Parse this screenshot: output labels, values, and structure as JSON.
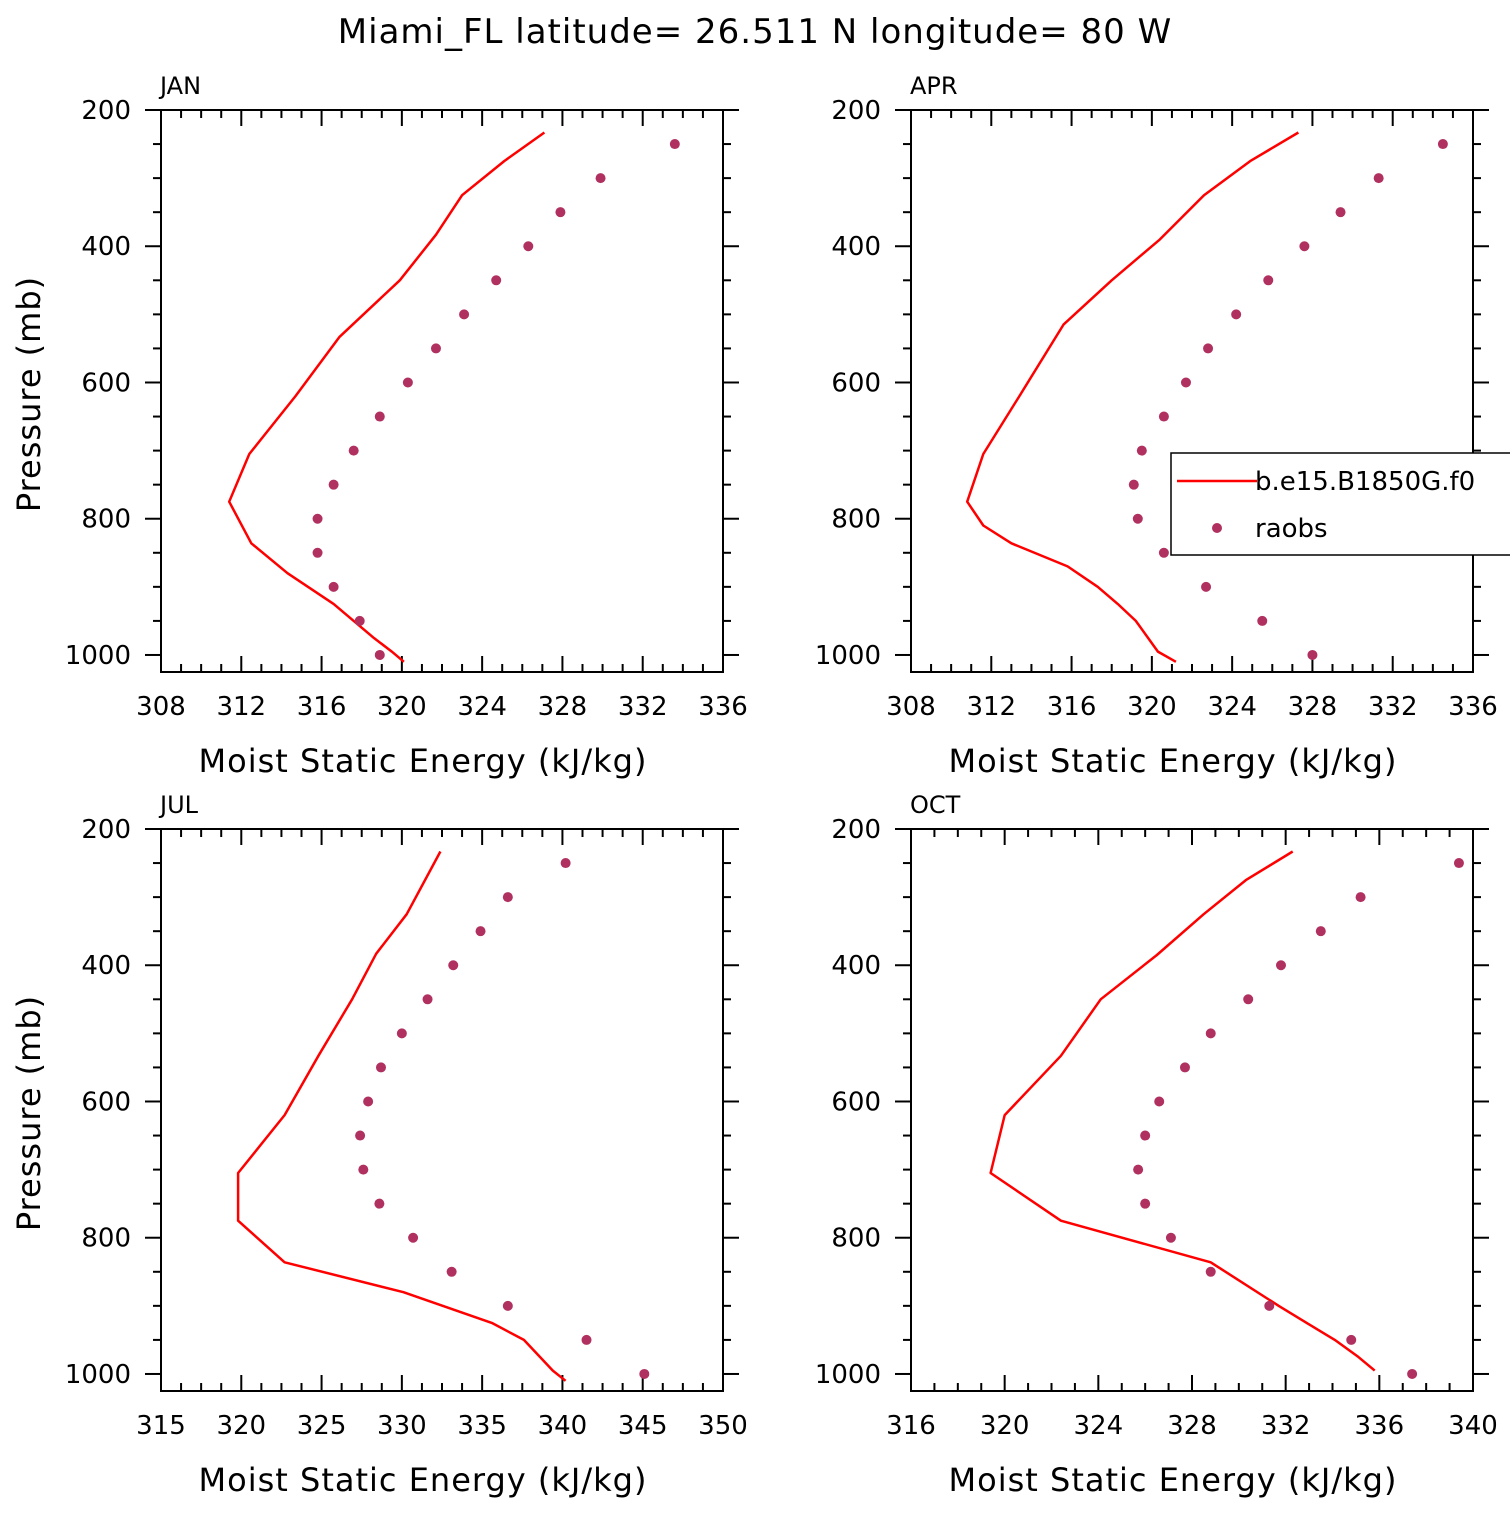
{
  "figure": {
    "title": "Miami_FL  latitude= 26.511 N longitude= 80 W"
  },
  "colors": {
    "model_line": "#ff0000",
    "obs_marker": "#b03060",
    "axis": "#000000"
  },
  "legend": {
    "placement": "right side of APR panel",
    "entries": [
      {
        "label": "b.e15.B1850G.f0",
        "style": "line"
      },
      {
        "label": "raobs",
        "style": "marker"
      }
    ]
  },
  "chart_data": [
    {
      "type": "line",
      "panel_label": "JAN",
      "xlabel": "Moist Static Energy (kJ/kg)",
      "ylabel": "Pressure (mb)",
      "xlim": [
        308,
        336
      ],
      "xticks": [
        308,
        312,
        316,
        320,
        324,
        328,
        332,
        336
      ],
      "ylim": [
        1000,
        200
      ],
      "ylim_plot": [
        1025,
        200
      ],
      "yticks": [
        200,
        400,
        600,
        800,
        1000
      ],
      "series": [
        {
          "kind": "line",
          "x": [
            327.1,
            325.1,
            323.0,
            321.7,
            319.9,
            316.9,
            314.7,
            312.4,
            311.4,
            312.5,
            314.3,
            316.6,
            317.6,
            318.6,
            319.5,
            320.1
          ],
          "y": [
            233,
            275,
            325,
            383,
            450,
            533,
            620,
            705,
            775,
            836,
            880,
            925,
            950,
            975,
            995,
            1010
          ]
        },
        {
          "kind": "scatter",
          "x": [
            333.6,
            329.9,
            327.9,
            326.3,
            324.7,
            323.1,
            321.7,
            320.3,
            318.9,
            317.6,
            316.6,
            315.8,
            315.8,
            316.6,
            317.9,
            318.9
          ],
          "y": [
            250,
            300,
            350,
            400,
            450,
            500,
            550,
            600,
            650,
            700,
            750,
            800,
            850,
            900,
            950,
            1000
          ]
        }
      ]
    },
    {
      "type": "line",
      "panel_label": "APR",
      "xlabel": "Moist Static Energy (kJ/kg)",
      "ylabel": "",
      "xlim": [
        308,
        336
      ],
      "xticks": [
        308,
        312,
        316,
        320,
        324,
        328,
        332,
        336
      ],
      "ylim": [
        1000,
        200
      ],
      "ylim_plot": [
        1025,
        200
      ],
      "yticks": [
        200,
        400,
        600,
        800,
        1000
      ],
      "series": [
        {
          "kind": "line",
          "x": [
            327.3,
            324.9,
            322.6,
            320.4,
            318.0,
            315.6,
            313.4,
            311.6,
            310.8,
            311.6,
            313.0,
            315.8,
            317.3,
            318.3,
            319.2,
            320.3,
            321.2
          ],
          "y": [
            233,
            275,
            325,
            390,
            450,
            515,
            620,
            705,
            775,
            810,
            836,
            870,
            900,
            925,
            950,
            995,
            1010
          ]
        },
        {
          "kind": "scatter",
          "x": [
            334.5,
            331.3,
            329.4,
            327.6,
            325.8,
            324.2,
            322.8,
            321.7,
            320.6,
            319.5,
            319.1,
            319.3,
            320.6,
            322.7,
            325.5,
            328.0
          ],
          "y": [
            250,
            300,
            350,
            400,
            450,
            500,
            550,
            600,
            650,
            700,
            750,
            800,
            850,
            900,
            950,
            1000
          ]
        }
      ]
    },
    {
      "type": "line",
      "panel_label": "JUL",
      "xlabel": "Moist Static Energy (kJ/kg)",
      "ylabel": "Pressure (mb)",
      "xlim": [
        315,
        350
      ],
      "xticks": [
        315,
        320,
        325,
        330,
        335,
        340,
        345,
        350
      ],
      "ylim": [
        1000,
        200
      ],
      "ylim_plot": [
        1025,
        200
      ],
      "yticks": [
        200,
        400,
        600,
        800,
        1000
      ],
      "series": [
        {
          "kind": "line",
          "x": [
            332.4,
            330.3,
            328.4,
            326.9,
            324.8,
            322.7,
            319.8,
            319.8,
            322.7,
            330.1,
            335.6,
            337.6,
            338.6,
            339.4,
            340.2
          ],
          "y": [
            233,
            325,
            383,
            450,
            533,
            620,
            705,
            775,
            836,
            880,
            925,
            950,
            975,
            995,
            1010
          ]
        },
        {
          "kind": "scatter",
          "x": [
            340.2,
            336.6,
            334.9,
            333.2,
            331.6,
            330.0,
            328.7,
            327.9,
            327.4,
            327.6,
            328.6,
            330.7,
            333.1,
            336.6,
            341.5,
            345.1
          ],
          "y": [
            250,
            300,
            350,
            400,
            450,
            500,
            550,
            600,
            650,
            700,
            750,
            800,
            850,
            900,
            950,
            1000
          ]
        }
      ]
    },
    {
      "type": "line",
      "panel_label": "OCT",
      "xlabel": "Moist Static Energy (kJ/kg)",
      "ylabel": "",
      "xlim": [
        316,
        340
      ],
      "xticks": [
        316,
        320,
        324,
        328,
        332,
        336,
        340
      ],
      "ylim": [
        1000,
        200
      ],
      "ylim_plot": [
        1025,
        200
      ],
      "yticks": [
        200,
        400,
        600,
        800,
        1000
      ],
      "series": [
        {
          "kind": "line",
          "x": [
            332.3,
            330.3,
            328.5,
            326.5,
            324.1,
            322.4,
            320.0,
            319.4,
            322.4,
            328.8,
            331.7,
            332.9,
            334.1,
            335.1,
            335.8
          ],
          "y": [
            233,
            275,
            325,
            385,
            450,
            533,
            620,
            705,
            775,
            836,
            900,
            925,
            950,
            975,
            995
          ]
        },
        {
          "kind": "scatter",
          "x": [
            339.4,
            335.2,
            333.5,
            331.8,
            330.4,
            328.8,
            327.7,
            326.6,
            326.0,
            325.7,
            326.0,
            327.1,
            328.8,
            331.3,
            334.8,
            337.4
          ],
          "y": [
            250,
            300,
            350,
            400,
            450,
            500,
            550,
            600,
            650,
            700,
            750,
            800,
            850,
            900,
            950,
            1000
          ]
        }
      ]
    }
  ]
}
